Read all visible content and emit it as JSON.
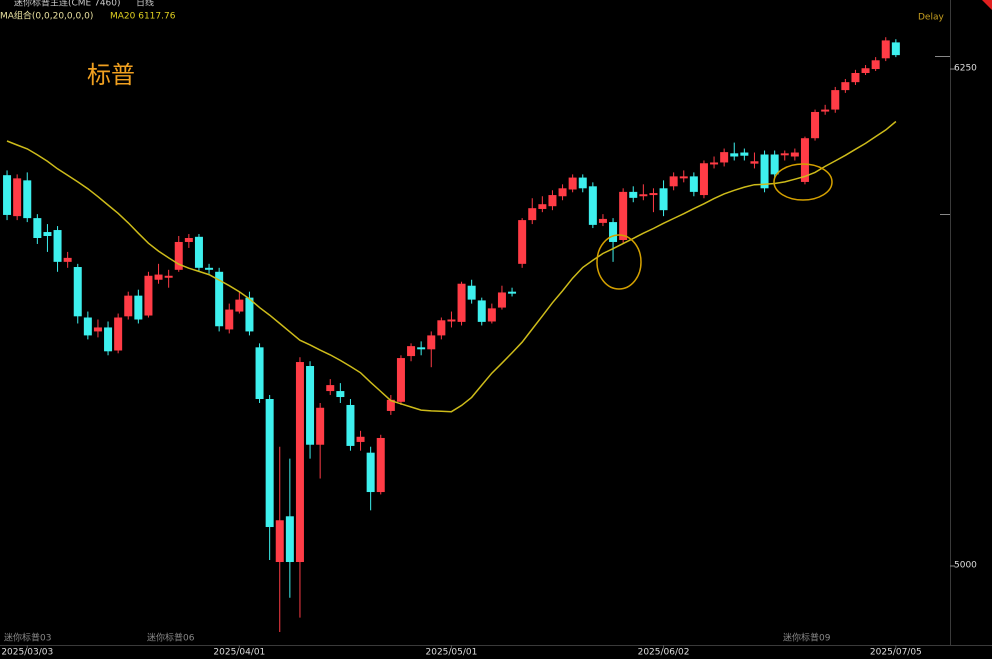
{
  "header": {
    "instrument": "迷你标普主连(CME 7460)",
    "period": "日线",
    "indicator": "MA组合(0,0,20,0,0,0)",
    "ma_readout": "MA20 6117.76",
    "status": "Delay"
  },
  "contract_labels": [
    "迷你标普03",
    "迷你标普06",
    "迷你标普09"
  ],
  "chart_data": {
    "type": "candlestick",
    "title": "标普",
    "categories": [
      null,
      null,
      "2025/03/03",
      null,
      null,
      null,
      null,
      null,
      null,
      null,
      null,
      null,
      null,
      null,
      null,
      null,
      null,
      null,
      null,
      null,
      null,
      null,
      null,
      "2025/04/01",
      null,
      null,
      null,
      null,
      null,
      null,
      null,
      null,
      null,
      null,
      null,
      null,
      null,
      null,
      null,
      null,
      null,
      null,
      null,
      null,
      "2025/05/01",
      null,
      null,
      null,
      null,
      null,
      null,
      null,
      null,
      null,
      null,
      null,
      null,
      null,
      null,
      null,
      null,
      null,
      null,
      null,
      null,
      "2025/06/02",
      null,
      null,
      null,
      null,
      null,
      null,
      null,
      null,
      null,
      null,
      null,
      null,
      null,
      null,
      null,
      null,
      null,
      null,
      null,
      null,
      null,
      null,
      "2025/07/05"
    ],
    "open": [
      5983,
      5880,
      5970,
      5875,
      5840,
      5845,
      5765,
      5752,
      5625,
      5590,
      5600,
      5542,
      5628,
      5680,
      5630,
      5720,
      5725,
      5745,
      5815,
      5828,
      5750,
      5740,
      5595,
      5640,
      5675,
      5550,
      5420,
      5010,
      5125,
      5010,
      5503,
      5305,
      5440,
      5440,
      5405,
      5312,
      5285,
      5186,
      5390,
      5413,
      5528,
      5550,
      5545,
      5580,
      5615,
      5614,
      5705,
      5668,
      5615,
      5650,
      5690,
      5760,
      5870,
      5898,
      5905,
      5930,
      5947,
      5977,
      5955,
      5863,
      5865,
      5820,
      5941,
      5930,
      5933,
      5950,
      5955,
      5975,
      5980,
      5933,
      6010,
      6015,
      6038,
      6040,
      6012,
      6035,
      6035,
      6033,
      6030,
      5966,
      6076,
      6143,
      6148,
      6197,
      6217,
      6240,
      6250,
      6277,
      6317
    ],
    "high": [
      5995,
      5985,
      5990,
      5885,
      5860,
      5855,
      5790,
      5760,
      5640,
      5620,
      5615,
      5635,
      5690,
      5695,
      5740,
      5760,
      5745,
      5830,
      5835,
      5835,
      5760,
      5750,
      5660,
      5690,
      5690,
      5560,
      5430,
      5300,
      5270,
      5525,
      5515,
      5410,
      5470,
      5460,
      5420,
      5340,
      5300,
      5330,
      5430,
      5530,
      5560,
      5565,
      5590,
      5625,
      5640,
      5715,
      5720,
      5675,
      5660,
      5705,
      5700,
      5875,
      5925,
      5930,
      5945,
      5960,
      5985,
      5985,
      5965,
      5885,
      5875,
      5950,
      5955,
      5960,
      5950,
      5970,
      5990,
      5995,
      5990,
      6020,
      6030,
      6050,
      6065,
      6050,
      6040,
      6045,
      6045,
      6045,
      6050,
      6080,
      6148,
      6160,
      6205,
      6225,
      6248,
      6260,
      6280,
      6330,
      6325
    ],
    "low": [
      5870,
      5870,
      5865,
      5810,
      5790,
      5740,
      5750,
      5610,
      5570,
      5575,
      5530,
      5535,
      5620,
      5610,
      5625,
      5710,
      5700,
      5740,
      5800,
      5740,
      5735,
      5590,
      5585,
      5635,
      5580,
      5410,
      5015,
      4834,
      4920,
      4870,
      5270,
      5220,
      5430,
      5410,
      5290,
      5290,
      5140,
      5180,
      5380,
      5405,
      5515,
      5530,
      5500,
      5570,
      5600,
      5605,
      5660,
      5605,
      5610,
      5645,
      5678,
      5750,
      5860,
      5890,
      5895,
      5920,
      5940,
      5940,
      5850,
      5855,
      5765,
      5810,
      5915,
      5920,
      5890,
      5880,
      5945,
      5965,
      5930,
      5925,
      6000,
      6005,
      6020,
      6020,
      6000,
      5940,
      5975,
      6020,
      6020,
      5960,
      6070,
      6135,
      6140,
      6190,
      6210,
      6235,
      6245,
      6270,
      6280
    ],
    "close": [
      5883,
      5975,
      5875,
      5825,
      5830,
      5765,
      5775,
      5628,
      5580,
      5600,
      5540,
      5625,
      5680,
      5620,
      5730,
      5733,
      5730,
      5815,
      5825,
      5750,
      5745,
      5603,
      5645,
      5670,
      5590,
      5420,
      5098,
      5115,
      5010,
      5513,
      5305,
      5398,
      5455,
      5425,
      5302,
      5325,
      5186,
      5322,
      5418,
      5523,
      5553,
      5545,
      5580,
      5618,
      5620,
      5710,
      5670,
      5614,
      5648,
      5688,
      5685,
      5870,
      5900,
      5910,
      5933,
      5950,
      5977,
      5950,
      5858,
      5873,
      5815,
      5941,
      5926,
      5935,
      5938,
      5895,
      5980,
      5980,
      5941,
      6013,
      6015,
      6041,
      6030,
      6032,
      6018,
      5950,
      5985,
      6038,
      6040,
      6076,
      6142,
      6148,
      6197,
      6217,
      6240,
      6252,
      6272,
      6322,
      6285
    ],
    "up_color": "#ff3c46",
    "down_color": "#3ef0ee",
    "series": [
      {
        "name": "MA20",
        "color": "#cdbb1a",
        "values": [
          6069,
          6059,
          6049,
          6034,
          6018,
          5999,
          5983,
          5966,
          5949,
          5929,
          5908,
          5887,
          5863,
          5837,
          5812,
          5792,
          5775,
          5759,
          5749,
          5741,
          5733,
          5719,
          5705,
          5690,
          5672,
          5650,
          5631,
          5610,
          5589,
          5568,
          5556,
          5543,
          5531,
          5517,
          5502,
          5486,
          5462,
          5439,
          5416,
          5408,
          5400,
          5392,
          5390,
          5389,
          5388,
          5404,
          5424,
          5455,
          5485,
          5510,
          5536,
          5563,
          5596,
          5629,
          5662,
          5692,
          5724,
          5751,
          5769,
          5786,
          5798,
          5811,
          5824,
          5837,
          5849,
          5862,
          5874,
          5886,
          5899,
          5911,
          5924,
          5936,
          5945,
          5953,
          5959,
          5960,
          5962,
          5966,
          5973,
          5980,
          5990,
          6005,
          6019,
          6033,
          6048,
          6063,
          6080,
          6097,
          6118
        ]
      }
    ],
    "ylim": [
      4800,
      6400
    ],
    "yticks": [
      5000,
      6250
    ]
  }
}
